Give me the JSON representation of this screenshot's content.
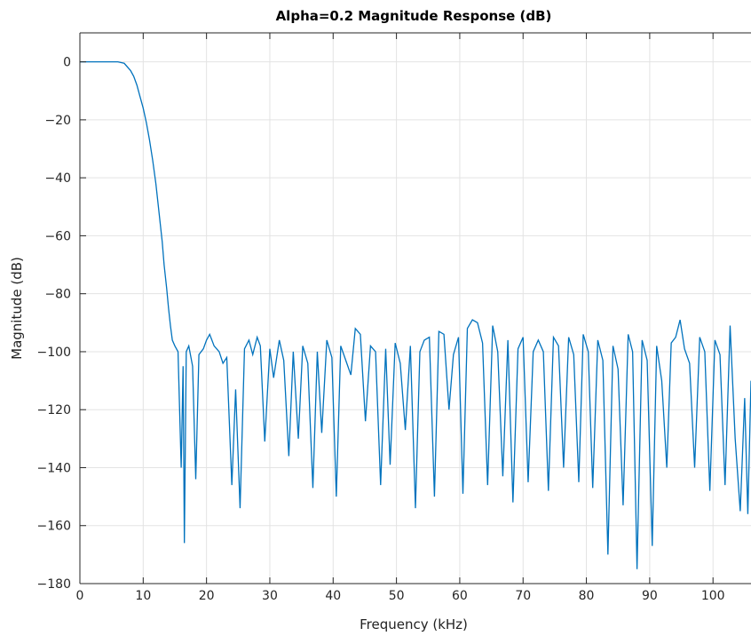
{
  "chart_data": {
    "type": "line",
    "title": "Alpha=0.2 Magnitude Response (dB)",
    "xlabel": "Frequency (kHz)",
    "ylabel": "Magnitude (dB)",
    "xlim": [
      0,
      106
    ],
    "ylim": [
      -180,
      10
    ],
    "xticks": [
      0,
      10,
      20,
      30,
      40,
      50,
      60,
      70,
      80,
      90,
      100
    ],
    "yticks": [
      0,
      -20,
      -40,
      -60,
      -80,
      -100,
      -120,
      -140,
      -160,
      -180
    ],
    "grid": true,
    "line_color": "#0072BD",
    "series": [
      {
        "x": [
          0,
          2,
          4,
          6,
          7,
          8,
          8.5,
          9,
          9.5,
          10,
          10.5,
          11,
          11.5,
          12,
          12.5,
          13,
          13.3,
          13.7,
          14,
          14.3,
          14.6,
          15,
          15.5,
          16,
          16.3,
          16.5,
          16.8,
          17.2,
          17.8,
          18.3,
          18.8,
          19.5,
          20,
          20.5,
          21.2,
          22,
          22.6,
          23.2,
          24,
          24.6,
          25.3,
          26,
          26.7,
          27.3,
          28,
          28.5,
          29.2,
          30,
          30.6,
          31.5,
          32.2,
          33,
          33.7,
          34.5,
          35.2,
          36,
          36.8,
          37.5,
          38.2,
          39,
          39.8,
          40.5,
          41.2,
          42,
          42.8,
          43.5,
          44.3,
          45.1,
          45.9,
          46.7,
          47.5,
          48.3,
          49,
          49.8,
          50.6,
          51.4,
          52.2,
          53,
          53.7,
          54.4,
          55.2,
          56,
          56.7,
          57.5,
          58.3,
          59,
          59.8,
          60.5,
          61.2,
          62,
          62.8,
          63.6,
          64.4,
          65.2,
          66,
          66.8,
          67.6,
          68.4,
          69.2,
          70,
          70.8,
          71.6,
          72.4,
          73.2,
          74,
          74.8,
          75.6,
          76.4,
          77.2,
          78,
          78.8,
          79.5,
          80.3,
          81,
          81.8,
          82.6,
          83.4,
          84.2,
          85,
          85.8,
          86.6,
          87.3,
          88,
          88.8,
          89.6,
          90.4,
          91.1,
          91.9,
          92.7,
          93.4,
          94.1,
          94.8,
          95.5,
          96.3,
          97.1,
          97.9,
          98.7,
          99.5,
          100.3,
          101.1,
          101.9,
          102.7,
          103.5,
          104.3,
          105,
          105.5,
          106
        ],
        "y": [
          0,
          0,
          0,
          0,
          -0.5,
          -3,
          -5,
          -8,
          -12,
          -16,
          -21,
          -27,
          -34,
          -42,
          -52,
          -62,
          -70,
          -78,
          -85,
          -91,
          -96,
          -98,
          -100,
          -140,
          -105,
          -166,
          -100,
          -98,
          -105,
          -144,
          -101,
          -99,
          -96,
          -94,
          -98,
          -100,
          -104,
          -102,
          -146,
          -113,
          -154,
          -99,
          -96,
          -101,
          -95,
          -98,
          -131,
          -99,
          -109,
          -96,
          -103,
          -136,
          -100,
          -130,
          -98,
          -104,
          -147,
          -100,
          -128,
          -96,
          -102,
          -150,
          -98,
          -103,
          -108,
          -92,
          -94,
          -124,
          -98,
          -100,
          -146,
          -99,
          -139,
          -97,
          -104,
          -127,
          -98,
          -154,
          -100,
          -96,
          -95,
          -150,
          -93,
          -94,
          -120,
          -101,
          -95,
          -149,
          -92,
          -89,
          -90,
          -97,
          -146,
          -91,
          -100,
          -143,
          -96,
          -152,
          -99,
          -95,
          -145,
          -100,
          -96,
          -100,
          -148,
          -95,
          -98,
          -140,
          -95,
          -101,
          -145,
          -94,
          -100,
          -147,
          -96,
          -103,
          -170,
          -98,
          -106,
          -153,
          -94,
          -100,
          -175,
          -96,
          -103,
          -167,
          -98,
          -110,
          -140,
          -97,
          -95,
          -89,
          -99,
          -104,
          -140,
          -95,
          -100,
          -148,
          -96,
          -101,
          -146,
          -91,
          -130,
          -155,
          -116,
          -156,
          -110
        ]
      }
    ]
  }
}
